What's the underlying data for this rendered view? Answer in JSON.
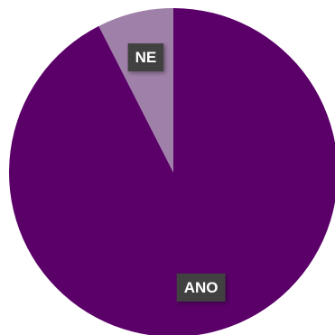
{
  "chart_data": {
    "type": "pie",
    "categories": [
      "ANO",
      "NE"
    ],
    "values": [
      92.5,
      7.5
    ],
    "colors": [
      "#5a0068",
      "#9f80a8"
    ],
    "label_box_color": "#404040",
    "start_angle_deg": 0,
    "direction": "clockwise",
    "title": "",
    "legend": "none"
  }
}
